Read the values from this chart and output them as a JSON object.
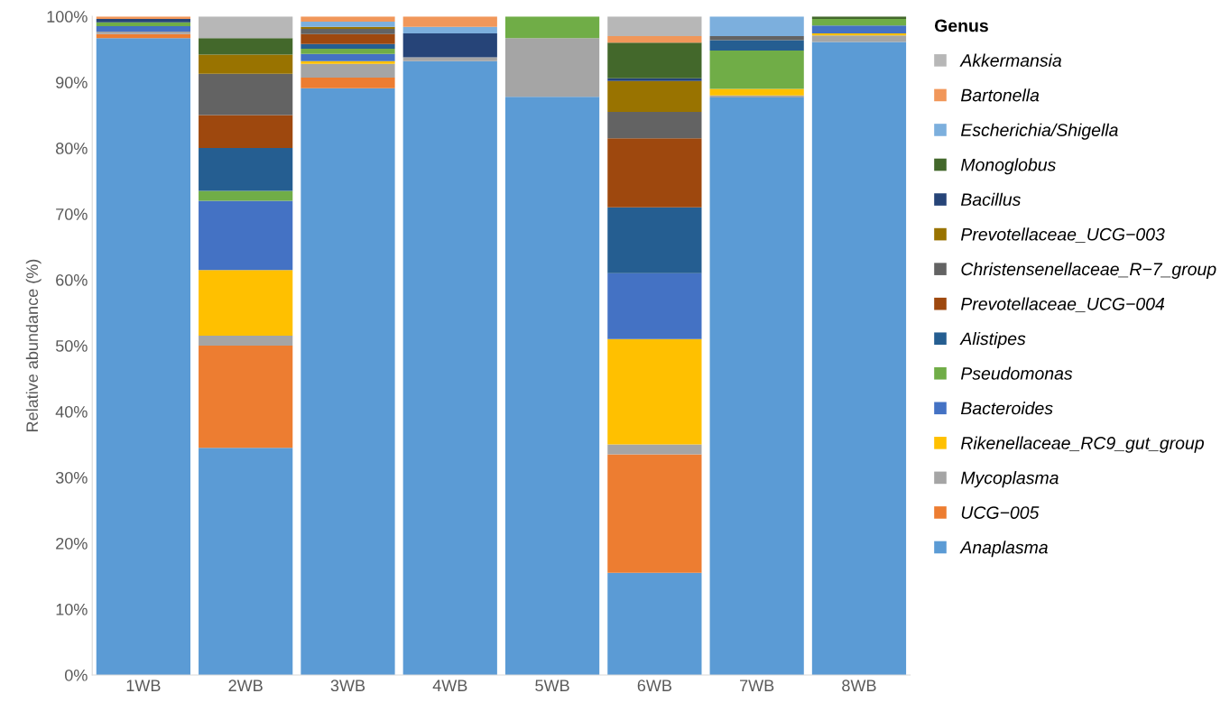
{
  "chart_data": {
    "type": "bar",
    "stacked": true,
    "ylabel": "Relative abundance (%)",
    "legend_title": "Genus",
    "legend": "right",
    "grid": false,
    "categories": [
      "1WB",
      "2WB",
      "3WB",
      "4WB",
      "5WB",
      "6WB",
      "7WB",
      "8WB"
    ],
    "ylim": [
      0,
      100
    ],
    "yticks": [
      {
        "value": 0,
        "label": "0%"
      },
      {
        "value": 10,
        "label": "10%"
      },
      {
        "value": 20,
        "label": "20%"
      },
      {
        "value": 30,
        "label": "30%"
      },
      {
        "value": 40,
        "label": "40%"
      },
      {
        "value": 50,
        "label": "50%"
      },
      {
        "value": 60,
        "label": "60%"
      },
      {
        "value": 70,
        "label": "70%"
      },
      {
        "value": 80,
        "label": "80%"
      },
      {
        "value": 90,
        "label": "90%"
      },
      {
        "value": 100,
        "label": "100%"
      }
    ],
    "series": [
      {
        "name": "Anaplasma",
        "color": "#5b9bd5",
        "values": [
          96.7,
          34.5,
          89.1,
          93.2,
          87.8,
          15.5,
          87.7,
          96.1
        ]
      },
      {
        "name": "UCG−005",
        "color": "#ed7d31",
        "values": [
          0.6,
          15.5,
          1.6,
          0,
          0,
          18,
          0,
          0
        ]
      },
      {
        "name": "Mycoplasma",
        "color": "#a5a5a5",
        "values": [
          0.4,
          1.5,
          2.1,
          0.6,
          8.9,
          1.5,
          0.3,
          1.0
        ]
      },
      {
        "name": "Rikenellaceae_RC9_gut_group",
        "color": "#ffc000",
        "values": [
          0,
          10,
          0.4,
          0,
          0,
          16,
          1.0,
          0.3
        ]
      },
      {
        "name": "Bacteroides",
        "color": "#4472c4",
        "values": [
          0.8,
          10.5,
          1.1,
          0,
          0,
          10,
          0,
          1.2
        ]
      },
      {
        "name": "Pseudomonas",
        "color": "#70ad47",
        "values": [
          0.6,
          1.5,
          0.8,
          0,
          3.3,
          0,
          5.8,
          1.0
        ]
      },
      {
        "name": "Alistipes",
        "color": "#255e91",
        "values": [
          0,
          6.5,
          0.7,
          0,
          0,
          10,
          1.6,
          0
        ]
      },
      {
        "name": "Prevotellaceae_UCG−004",
        "color": "#9e480e",
        "values": [
          0,
          5,
          1.5,
          0,
          0,
          10.5,
          0,
          0
        ]
      },
      {
        "name": "Christensenellaceae_R−7_group",
        "color": "#636363",
        "values": [
          0,
          6.3,
          0.8,
          0,
          0,
          4,
          0.6,
          0
        ]
      },
      {
        "name": "Prevotellaceae_UCG−003",
        "color": "#997300",
        "values": [
          0,
          2.9,
          0.3,
          0,
          0,
          4.7,
          0,
          0
        ]
      },
      {
        "name": "Bacillus",
        "color": "#264478",
        "values": [
          0.5,
          0,
          0,
          3.6,
          0,
          0.4,
          0,
          0
        ]
      },
      {
        "name": "Monoglobus",
        "color": "#43682b",
        "values": [
          0,
          2.5,
          0,
          0,
          0,
          5.4,
          0,
          0.4
        ]
      },
      {
        "name": "Escherichia/Shigella",
        "color": "#7cafdd",
        "values": [
          0,
          0,
          0.8,
          1.0,
          0,
          0,
          3.0,
          0
        ]
      },
      {
        "name": "Bartonella",
        "color": "#f1975a",
        "values": [
          0.4,
          0,
          0.8,
          1.6,
          0,
          1,
          0,
          0
        ]
      },
      {
        "name": "Akkermansia",
        "color": "#b7b7b7",
        "values": [
          0,
          3.3,
          0,
          0,
          0,
          3,
          0,
          0
        ]
      }
    ]
  }
}
